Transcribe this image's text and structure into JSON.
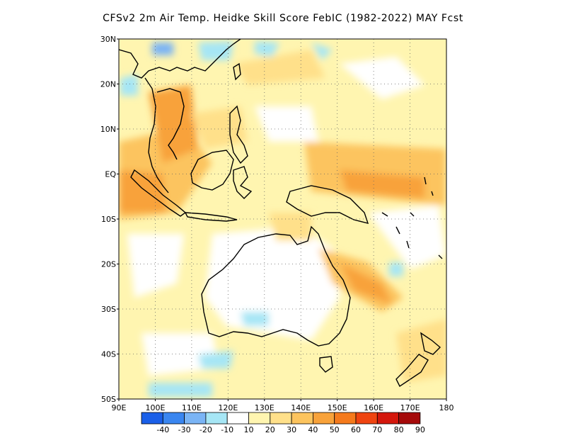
{
  "title": "CFSv2  2m Air Temp. Heidke Skill Score FebIC (1982-2022) MAY Fcst",
  "map": {
    "lon_range": [
      90,
      180
    ],
    "lat_range": [
      -50,
      30
    ],
    "lon_ticks": [
      "90E",
      "100E",
      "110E",
      "120E",
      "130E",
      "140E",
      "150E",
      "160E",
      "170E",
      "180"
    ],
    "lat_ticks": [
      "30N",
      "20N",
      "10N",
      "EQ",
      "10S",
      "20S",
      "30S",
      "40S",
      "50S"
    ],
    "gridlines": "dotted"
  },
  "colorbar": {
    "labels": [
      "-40",
      "-30",
      "-20",
      "-10",
      "10",
      "20",
      "30",
      "40",
      "50",
      "60",
      "70",
      "80",
      "90"
    ],
    "colors": [
      "#1a5fe8",
      "#3a86f0",
      "#7ab4f5",
      "#a6e6f5",
      "#ffffff",
      "#fff5b0",
      "#ffe08a",
      "#fcc45e",
      "#f8a23a",
      "#f57a1c",
      "#ef4410",
      "#d4170c",
      "#a50a0a"
    ]
  }
}
